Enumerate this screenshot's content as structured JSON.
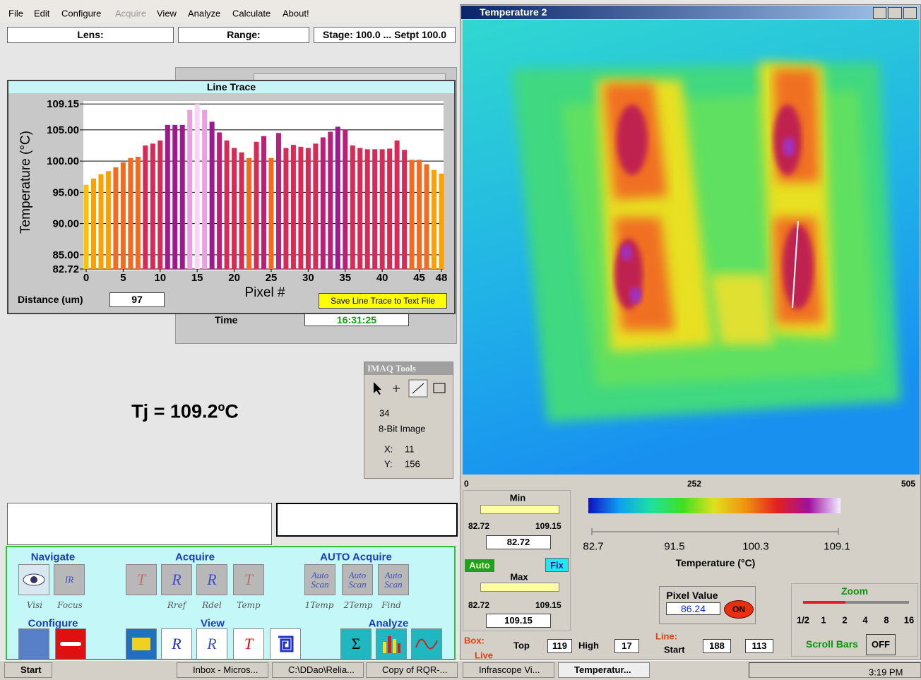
{
  "menu": [
    "File",
    "Edit",
    "Configure",
    "Acquire",
    "View",
    "Analyze",
    "Calculate",
    "About!"
  ],
  "status": {
    "lens": "Lens:",
    "range": "Range:",
    "stage": "Stage: 100.0 ... Setpt  100.0"
  },
  "background_panel": {
    "time_label": "Time",
    "time": "16:31:25"
  },
  "chart_data": {
    "type": "bar",
    "title": "Line Trace",
    "x_label": "Pixel #",
    "y_label": "Temperature (°C)",
    "x": [
      0,
      1,
      2,
      3,
      4,
      5,
      6,
      7,
      8,
      9,
      10,
      11,
      12,
      13,
      14,
      15,
      16,
      17,
      18,
      19,
      20,
      21,
      22,
      23,
      24,
      25,
      26,
      27,
      28,
      29,
      30,
      31,
      32,
      33,
      34,
      35,
      36,
      37,
      38,
      39,
      40,
      41,
      42,
      43,
      44,
      45,
      46,
      47,
      48
    ],
    "values": [
      96.2,
      97.2,
      97.9,
      98.4,
      99.0,
      99.8,
      100.5,
      100.7,
      102.5,
      102.8,
      103.3,
      105.8,
      105.8,
      105.8,
      108.2,
      109.15,
      108.2,
      106.3,
      104.6,
      103.3,
      102.1,
      101.4,
      100.5,
      103.1,
      104.0,
      100.5,
      104.5,
      102.1,
      102.6,
      102.3,
      102.1,
      102.8,
      103.8,
      104.7,
      105.5,
      105.0,
      102.5,
      102.1,
      101.9,
      101.9,
      101.9,
      102.0,
      103.3,
      101.8,
      100.2,
      100.2,
      99.5,
      98.6,
      98.0
    ],
    "colors": [
      "#ffc000",
      "#ffa000",
      "#ffa000",
      "#ffa000",
      "#f46a1e",
      "#f46a1e",
      "#f46a1e",
      "#f46a1e",
      "#d82a56",
      "#d82a56",
      "#d82a56",
      "#a0188e",
      "#a0188e",
      "#a0188e",
      "#e8a0e0",
      "#f6d6f4",
      "#e8a0e0",
      "#a0188e",
      "#b8207a",
      "#d82a56",
      "#d82a56",
      "#d82a56",
      "#f46a1e",
      "#d82a56",
      "#b8207a",
      "#f46a1e",
      "#b8207a",
      "#d82a56",
      "#d82a56",
      "#d82a56",
      "#d82a56",
      "#d82a56",
      "#b8207a",
      "#b8207a",
      "#a0188e",
      "#b8207a",
      "#d82a56",
      "#d82a56",
      "#d82a56",
      "#d82a56",
      "#d82a56",
      "#d82a56",
      "#d82a56",
      "#d82a56",
      "#f46a1e",
      "#f46a1e",
      "#f46a1e",
      "#ffa000",
      "#ffa000"
    ],
    "xlim": [
      0,
      48
    ],
    "xticks": [
      0,
      5,
      10,
      15,
      20,
      25,
      30,
      35,
      40,
      45,
      48
    ],
    "ylim": [
      82.72,
      109.4
    ],
    "yticks": [
      82.72,
      {
        "value": 85,
        "label": "85.00"
      },
      {
        "value": 90,
        "label": "90.00"
      },
      {
        "value": 95,
        "label": "95.00"
      },
      {
        "value": 100,
        "label": "100.00"
      },
      {
        "value": 105,
        "label": "105.00"
      },
      109.15
    ],
    "grid": true
  },
  "distance": {
    "label": "Distance (um)",
    "value": 97
  },
  "save_button": "Save Line Trace to Text File",
  "annotation": "Tj = 109.2ºC",
  "imaq_tools": {
    "title": "IMAQ Tools",
    "value": 34,
    "image_type": "8-Bit Image",
    "x_label": "X:",
    "x": 11,
    "y_label": "Y:",
    "y": 156
  },
  "toolbar": {
    "groups": [
      "Navigate",
      "Acquire",
      "AUTO Acquire",
      "Configure",
      "View",
      "Analyze"
    ],
    "labels": [
      "Visi",
      "Focus",
      "Rref",
      "Rdel",
      "Temp",
      "1Temp",
      "2Temp",
      "Find"
    ],
    "glyphs": [
      "IR",
      "T",
      "R",
      "R",
      "T",
      "Auto Scan",
      "Auto Scan",
      "Auto Scan",
      "R",
      "R",
      "T",
      "Σ"
    ]
  },
  "image_window": {
    "title": "Temperature 2",
    "scale": [
      0,
      252,
      505
    ],
    "min": {
      "label": "Min",
      "low": 82.72,
      "high": 109.15,
      "value": 82.72
    },
    "auto": "Auto",
    "fix": "Fix",
    "max": {
      "label": "Max",
      "low": 82.72,
      "high": 109.15,
      "value": 109.15
    },
    "colorbar": {
      "ticks": [
        82.7,
        91.5,
        100.3,
        109.1
      ],
      "label": "Temperature (°C)"
    },
    "pixel_value": {
      "label": "Pixel Value",
      "value": 86.24,
      "button": "ON"
    },
    "zoom": {
      "label": "Zoom",
      "levels": [
        "1/2",
        "1",
        "2",
        "4",
        "8",
        "16"
      ]
    },
    "scroll_bars": {
      "label": "Scroll Bars",
      "button": "OFF"
    },
    "box": {
      "label": "Box:",
      "live": "Live",
      "top_label": "Top",
      "top": 119,
      "high_label": "High",
      "high": 17
    },
    "line": {
      "label": "Line:",
      "start_label": "Start",
      "start_a": 188,
      "start_b": 113
    }
  },
  "taskbar": {
    "start": "Start",
    "items": [
      "Inbox - Micros...",
      "C:\\DDao\\Relia...",
      "Copy of RQR-...",
      "Infrascope Vi...",
      "Temperatur..."
    ],
    "time": "3:19 PM"
  }
}
